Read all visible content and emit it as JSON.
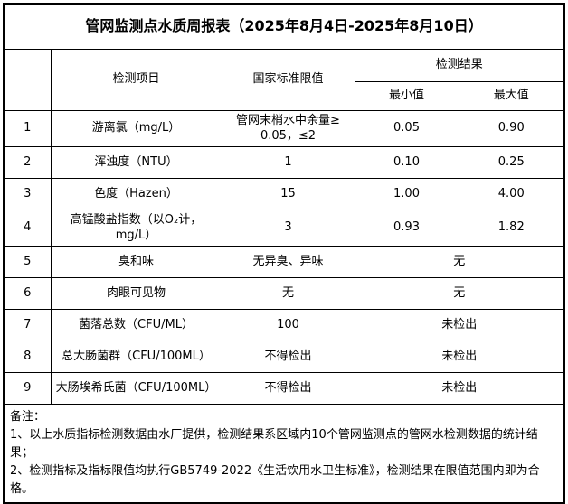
{
  "page": {
    "title": "管网监测点水质周报表（2025年8月4日-2025年8月10日）"
  },
  "table": {
    "headers": {
      "index": "",
      "item": "检测项目",
      "standard": "国家标准限值",
      "result_group": "检测结果",
      "min": "最小值",
      "max": "最大值"
    },
    "rows": [
      {
        "no": "1",
        "item": "游离氯（mg/L）",
        "standard": "管网末梢水中余量≥\n0.05，≤2",
        "min": "0.05",
        "max": "0.90"
      },
      {
        "no": "2",
        "item": "浑浊度（NTU）",
        "standard": "1",
        "min": "0.10",
        "max": "0.25"
      },
      {
        "no": "3",
        "item": "色度（Hazen）",
        "standard": "15",
        "min": "1.00",
        "max": "4.00"
      },
      {
        "no": "4",
        "item": "高锰酸盐指数（以O₂计，mg/L）",
        "standard": "3",
        "min": "0.93",
        "max": "1.82"
      },
      {
        "no": "5",
        "item": "臭和味",
        "standard": "无异臭、异味",
        "result": "无"
      },
      {
        "no": "6",
        "item": "肉眼可见物",
        "standard": "无",
        "result": "无"
      },
      {
        "no": "7",
        "item": "菌落总数（CFU/ML）",
        "standard": "100",
        "result": "未检出"
      },
      {
        "no": "8",
        "item": "总大肠菌群（CFU/100ML）",
        "standard": "不得检出",
        "result": "未检出"
      },
      {
        "no": "9",
        "item": "大肠埃希氏菌（CFU/100ML）",
        "standard": "不得检出",
        "result": "未检出"
      }
    ]
  },
  "notes": {
    "label": "备注：",
    "line1": "1、以上水质指标检测数据由水厂提供，检测结果系区域内10个管网监测点的管网水检测数据的统计结果；",
    "line2": "2、检测指标及指标限值均执行GB5749-2022《生活饮用水卫生标准》，检测结果在限值范围内即为合格。"
  }
}
